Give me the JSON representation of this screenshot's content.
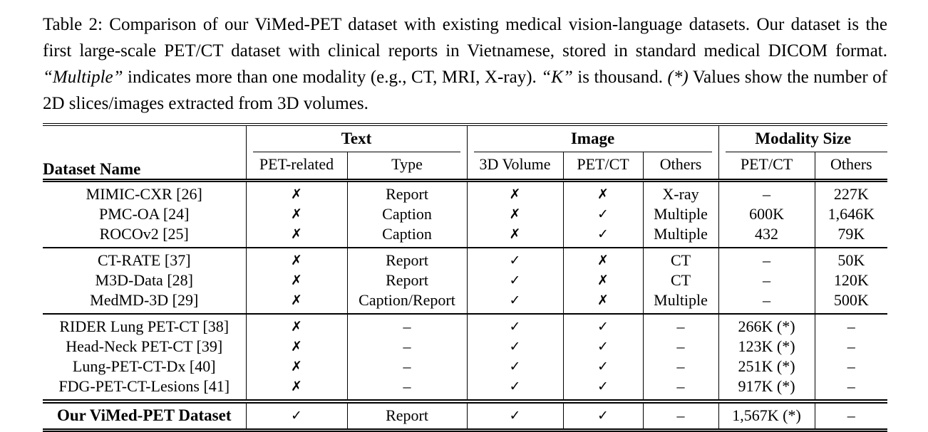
{
  "caption": {
    "segments": [
      {
        "text": "Table 2: Comparison of our ViMed-PET dataset with existing medical vision-language datasets. Our dataset is the first large-scale PET/CT dataset with clinical reports in Vietnamese, stored in standard medical DICOM format. ",
        "style": "roman"
      },
      {
        "text": "“Multiple”",
        "style": "italic"
      },
      {
        "text": " indicates more than one modality (e.g., CT, MRI, X-ray). ",
        "style": "roman"
      },
      {
        "text": "“K”",
        "style": "italic"
      },
      {
        "text": " is thousand. ",
        "style": "roman"
      },
      {
        "text": "(*)",
        "style": "italic"
      },
      {
        "text": " Values show the number of 2D slices/images extracted from 3D volumes.",
        "style": "roman"
      }
    ]
  },
  "table": {
    "header": {
      "dataset": "Dataset Name",
      "groups": [
        {
          "label": "Text",
          "sub": [
            "PET-related",
            "Type"
          ]
        },
        {
          "label": "Image",
          "sub": [
            "3D Volume",
            "PET/CT",
            "Others"
          ]
        },
        {
          "label": "Modality Size",
          "sub": [
            "PET/CT",
            "Others"
          ]
        }
      ]
    },
    "groups": [
      {
        "rows": [
          {
            "name": "MIMIC-CXR [26]",
            "cells": [
              "✗",
              "Report",
              "✗",
              "✗",
              "X-ray",
              "–",
              "227K"
            ]
          },
          {
            "name": "PMC-OA [24]",
            "cells": [
              "✗",
              "Caption",
              "✗",
              "✓",
              "Multiple",
              "600K",
              "1,646K"
            ]
          },
          {
            "name": "ROCOv2 [25]",
            "cells": [
              "✗",
              "Caption",
              "✗",
              "✓",
              "Multiple",
              "432",
              "79K"
            ]
          }
        ]
      },
      {
        "rows": [
          {
            "name": "CT-RATE [37]",
            "cells": [
              "✗",
              "Report",
              "✓",
              "✗",
              "CT",
              "–",
              "50K"
            ]
          },
          {
            "name": "M3D-Data [28]",
            "cells": [
              "✗",
              "Report",
              "✓",
              "✗",
              "CT",
              "–",
              "120K"
            ]
          },
          {
            "name": "MedMD-3D [29]",
            "cells": [
              "✗",
              "Caption/Report",
              "✓",
              "✗",
              "Multiple",
              "–",
              "500K"
            ]
          }
        ]
      },
      {
        "rows": [
          {
            "name": "RIDER Lung PET-CT [38]",
            "cells": [
              "✗",
              "–",
              "✓",
              "✓",
              "–",
              "266K (*)",
              "–"
            ]
          },
          {
            "name": "Head-Neck PET-CT [39]",
            "cells": [
              "✗",
              "–",
              "✓",
              "✓",
              "–",
              "123K (*)",
              "–"
            ]
          },
          {
            "name": "Lung-PET-CT-Dx [40]",
            "cells": [
              "✗",
              "–",
              "✓",
              "✓",
              "–",
              "251K (*)",
              "–"
            ]
          },
          {
            "name": "FDG-PET-CT-Lesions [41]",
            "cells": [
              "✗",
              "–",
              "✓",
              "✓",
              "–",
              "917K (*)",
              "–"
            ]
          }
        ]
      }
    ],
    "final": {
      "name": "Our ViMed-PET Dataset",
      "cells": [
        "✓",
        "Report",
        "✓",
        "✓",
        "–",
        "1,567K (*)",
        "–"
      ]
    }
  },
  "colors": {
    "text": "#000000",
    "background": "#ffffff",
    "rule": "#000000"
  }
}
